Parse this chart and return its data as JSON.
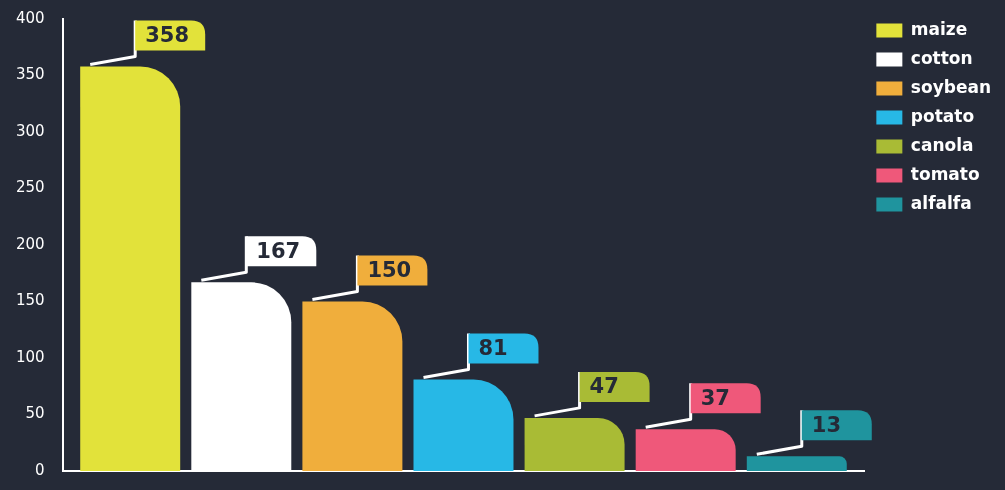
{
  "chart_data": {
    "type": "bar",
    "categories": [
      null
    ],
    "series": [
      {
        "name": "maize",
        "color": "#e2e23a",
        "values": [
          358
        ]
      },
      {
        "name": "cotton",
        "color": "#ffffff",
        "values": [
          167
        ]
      },
      {
        "name": "soybean",
        "color": "#f0ae3c",
        "values": [
          150
        ]
      },
      {
        "name": "potato",
        "color": "#27b8e6",
        "values": [
          81
        ]
      },
      {
        "name": "canola",
        "color": "#a9bb35",
        "values": [
          47
        ]
      },
      {
        "name": "tomato",
        "color": "#ef587a",
        "values": [
          37
        ]
      },
      {
        "name": "alfalfa",
        "color": "#1f949e",
        "values": [
          13
        ]
      }
    ],
    "ylim": [
      0,
      400
    ],
    "yticks": [
      0,
      50,
      100,
      150,
      200,
      250,
      300,
      350,
      400
    ],
    "grid": false,
    "legend": "top right",
    "data_labels": true,
    "tick_labels": "y"
  }
}
